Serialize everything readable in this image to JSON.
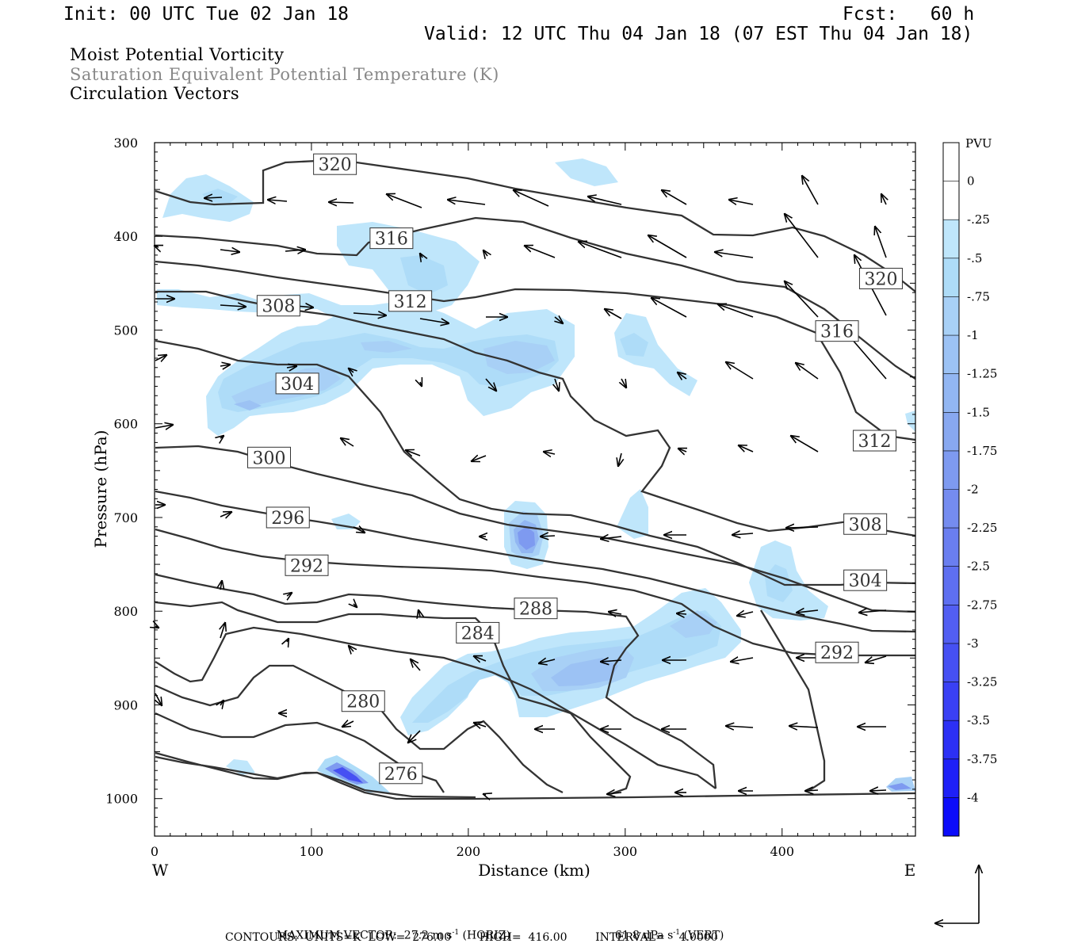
{
  "header": {
    "init": "Init: 00 UTC Tue 02 Jan 18",
    "fcst": "Fcst:   60 h",
    "valid": "Valid: 12 UTC Thu 04 Jan 18 (07 EST Thu 04 Jan 18)"
  },
  "titles": {
    "line1": "Moist Potential Vorticity",
    "line2": "Saturation Equivalent Potential Temperature (K)",
    "line3": "Circulation Vectors"
  },
  "colors": {
    "title1": "#000000",
    "title2": "#888888",
    "title3": "#000000",
    "contour": "#333333",
    "pv_shades": [
      "#ffffff",
      "#ffffff",
      "#bfe6fb",
      "#aedcf8",
      "#a8d0f6",
      "#9cc2f4",
      "#92b6f2",
      "#88a8f0",
      "#7e9af0",
      "#758cf0",
      "#6a7ef0",
      "#5e6ff1",
      "#525ef2",
      "#4650f3",
      "#3a40f4",
      "#2c30f5",
      "#1e20f7",
      "#0c0cfa"
    ]
  },
  "chart_data": {
    "type": "contour",
    "xlabel": "Distance (km)",
    "ylabel": "Pressure (hPa)",
    "x_ticks": [
      "0",
      "100",
      "200",
      "300",
      "400"
    ],
    "x_tick_values": [
      0,
      100,
      200,
      300,
      400
    ],
    "xlim": [
      0,
      485
    ],
    "y_ticks": [
      "300",
      "400",
      "500",
      "600",
      "700",
      "800",
      "900",
      "1000"
    ],
    "y_tick_values": [
      300,
      400,
      500,
      600,
      700,
      800,
      900,
      1000
    ],
    "ylim": [
      300,
      1040
    ],
    "west_label": "W",
    "east_label": "E",
    "colorbar": {
      "unit": "PVU",
      "labels": [
        "0",
        "-.25",
        "-.5",
        "-.75",
        "-1",
        "-1.25",
        "-1.5",
        "-1.75",
        "-2",
        "-2.25",
        "-2.5",
        "-2.75",
        "-3",
        "-3.25",
        "-3.5",
        "-3.75",
        "-4"
      ]
    },
    "contour_labels": [
      {
        "text": "320",
        "x": 115,
        "p": 323
      },
      {
        "text": "316",
        "x": 151,
        "p": 402
      },
      {
        "text": "312",
        "x": 163,
        "p": 469
      },
      {
        "text": "308",
        "x": 79,
        "p": 474
      },
      {
        "text": "304",
        "x": 91,
        "p": 557
      },
      {
        "text": "300",
        "x": 73,
        "p": 636
      },
      {
        "text": "296",
        "x": 85,
        "p": 700
      },
      {
        "text": "292",
        "x": 97,
        "p": 751
      },
      {
        "text": "288",
        "x": 243,
        "p": 797
      },
      {
        "text": "284",
        "x": 206,
        "p": 823
      },
      {
        "text": "280",
        "x": 133,
        "p": 896
      },
      {
        "text": "276",
        "x": 157,
        "p": 973
      },
      {
        "text": "320",
        "x": 463,
        "p": 445
      },
      {
        "text": "316",
        "x": 435,
        "p": 501
      },
      {
        "text": "312",
        "x": 459,
        "p": 618
      },
      {
        "text": "308",
        "x": 453,
        "p": 707
      },
      {
        "text": "304",
        "x": 453,
        "p": 767
      },
      {
        "text": "292",
        "x": 435,
        "p": 844
      }
    ],
    "footer": {
      "max_vector": "MAXIMUM VECTOR:  27.2 m s",
      "max_unit_sup": "-1",
      "horiz": " (HORIZ)",
      "vert_val": "61.8 dPa s",
      "vert_sup": "-1",
      "vert": " (VERT)",
      "contours": "CONTOURS:  UNITS=K  LOW=  276.00        HIGH=  416.00        INTERVAL=    4.0000"
    }
  }
}
